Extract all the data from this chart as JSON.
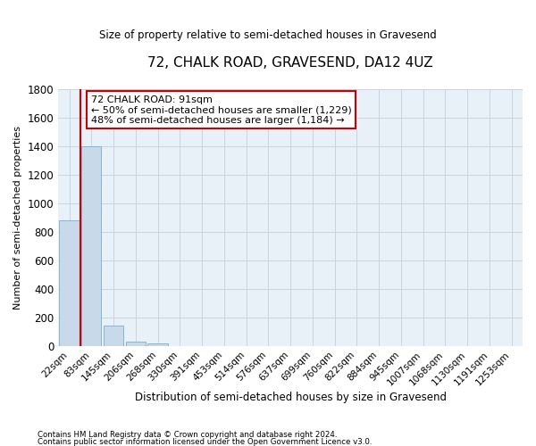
{
  "title": "72, CHALK ROAD, GRAVESEND, DA12 4UZ",
  "subtitle": "Size of property relative to semi-detached houses in Gravesend",
  "xlabel": "Distribution of semi-detached houses by size in Gravesend",
  "ylabel": "Number of semi-detached properties",
  "bar_color": "#c8d9ea",
  "bar_edge_color": "#7aaed4",
  "grid_color": "#c8d4e0",
  "background_color": "#e8f0f8",
  "annotation_box_color": "#ffffff",
  "annotation_border_color": "#cc0000",
  "marker_line_color": "#cc0000",
  "categories": [
    "22sqm",
    "83sqm",
    "145sqm",
    "206sqm",
    "268sqm",
    "330sqm",
    "391sqm",
    "453sqm",
    "514sqm",
    "576sqm",
    "637sqm",
    "699sqm",
    "760sqm",
    "822sqm",
    "884sqm",
    "945sqm",
    "1007sqm",
    "1068sqm",
    "1130sqm",
    "1191sqm",
    "1253sqm"
  ],
  "values": [
    880,
    1400,
    140,
    30,
    15,
    0,
    0,
    0,
    0,
    0,
    0,
    0,
    0,
    0,
    0,
    0,
    0,
    0,
    0,
    0,
    0
  ],
  "ylim": [
    0,
    1800
  ],
  "yticks": [
    0,
    200,
    400,
    600,
    800,
    1000,
    1200,
    1400,
    1600,
    1800
  ],
  "annotation_text_line1": "72 CHALK ROAD: 91sqm",
  "annotation_text_line2": "← 50% of semi-detached houses are smaller (1,229)",
  "annotation_text_line3": "48% of semi-detached houses are larger (1,184) →",
  "footnote_line1": "Contains HM Land Registry data © Crown copyright and database right 2024.",
  "footnote_line2": "Contains public sector information licensed under the Open Government Licence v3.0."
}
